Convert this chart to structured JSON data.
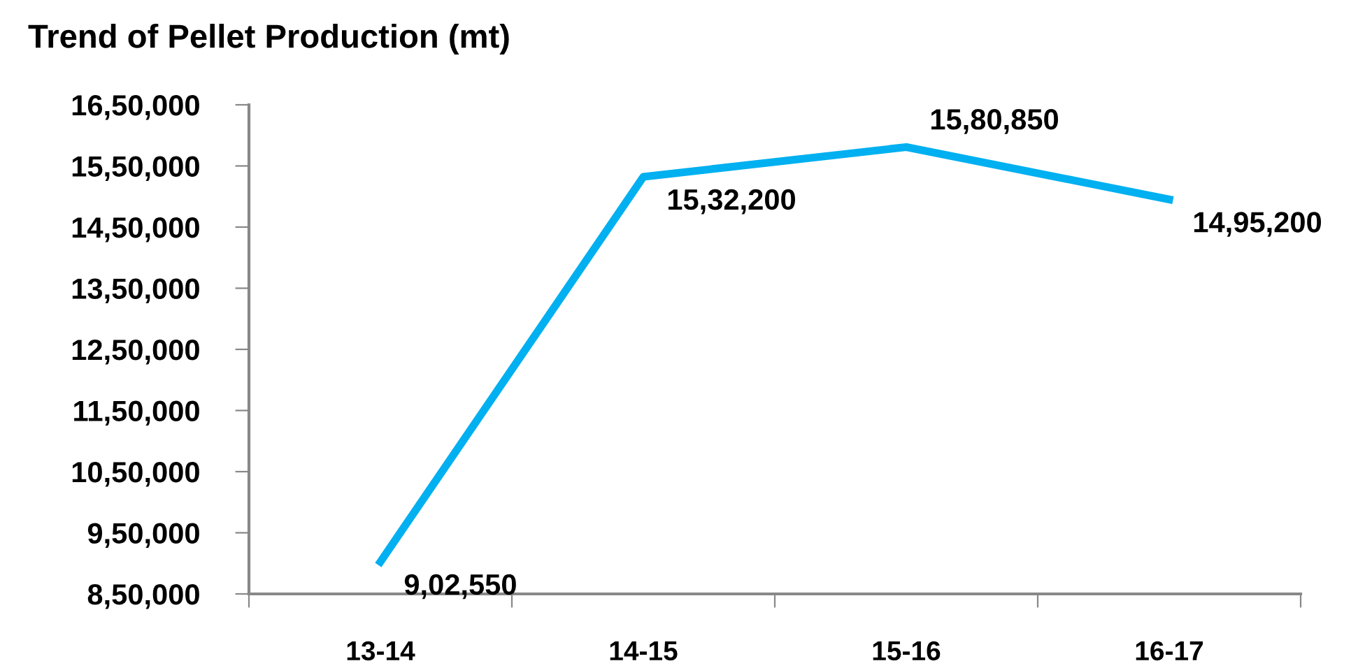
{
  "chart_data": {
    "type": "line",
    "title": "Trend of Pellet Production (mt)",
    "categories": [
      "13-14",
      "14-15",
      "15-16",
      "16-17"
    ],
    "series": [
      {
        "color": "#00b0f0",
        "values": [
          902550,
          1532200,
          1580850,
          1495200
        ],
        "value_labels": [
          "9,02,550",
          "15,32,200",
          "15,80,850",
          "14,95,200"
        ]
      }
    ],
    "ylim": [
      850000,
      1650000
    ],
    "yticks": [
      {
        "value": 850000,
        "label": "8,50,000"
      },
      {
        "value": 950000,
        "label": "9,50,000"
      },
      {
        "value": 1050000,
        "label": "10,50,000"
      },
      {
        "value": 1150000,
        "label": "11,50,000"
      },
      {
        "value": 1250000,
        "label": "12,50,000"
      },
      {
        "value": 1350000,
        "label": "13,50,000"
      },
      {
        "value": 1450000,
        "label": "14,50,000"
      },
      {
        "value": 1550000,
        "label": "15,50,000"
      },
      {
        "value": 1650000,
        "label": "16,50,000"
      }
    ],
    "grid": false,
    "legend": false,
    "marker": "none",
    "line_style": "solid"
  }
}
